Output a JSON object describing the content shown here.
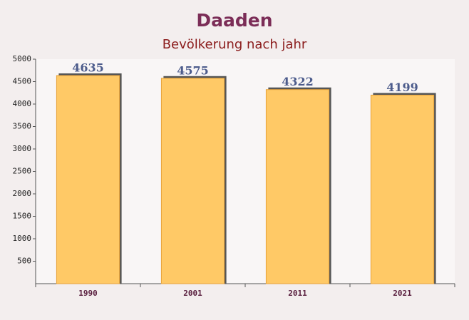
{
  "chart_data": {
    "type": "bar",
    "title": "Daaden",
    "subtitle": "Bevölkerung nach jahr",
    "categories": [
      "1990",
      "2001",
      "2011",
      "2021"
    ],
    "values": [
      4635,
      4575,
      4322,
      4199
    ],
    "color": "#ffc966",
    "ylim": [
      0,
      5000
    ],
    "yticks": [
      500,
      1000,
      1500,
      2000,
      2500,
      3000,
      3500,
      4000,
      4500,
      5000
    ]
  }
}
